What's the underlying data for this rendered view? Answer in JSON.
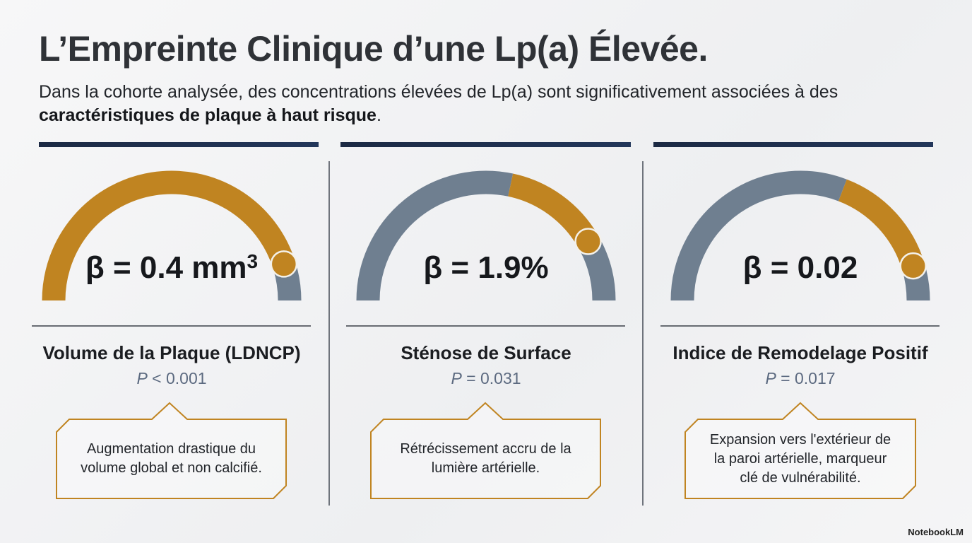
{
  "header": {
    "title": "L’Empreinte Clinique d’une Lp(a) Élevée.",
    "subtitle": {
      "before": "Dans la cohorte analysée, des concentrations élevées de Lp(a) sont significativement associées à des ",
      "bold": "caractéristiques de plaque à haut risque",
      "after": "."
    }
  },
  "panels": [
    {
      "value": "β = 0.4 mm",
      "value_sup": "3",
      "label": "Volume de la Plaque (LDNCP)",
      "p_symbol": "P",
      "p_value": "< 0.001",
      "note": [
        "Augmentation drastique du",
        "volume global et non calcifié."
      ]
    },
    {
      "value": "β = 1.9%",
      "label": "Sténose de Surface",
      "p_symbol": "P",
      "p_value": "= 0.031",
      "note": [
        "Rétrécissement accru de la",
        "lumière artérielle."
      ]
    },
    {
      "value": "β = 0.02",
      "label": "Indice de Remodelage Positif",
      "p_symbol": "P",
      "p_value": "= 0.017",
      "note": [
        "Expansion vers l'extérieur de",
        "la paroi artérielle, marqueur",
        "clé de vulnérabilité."
      ]
    }
  ],
  "footer": {
    "brand": "NotebookLM"
  }
}
